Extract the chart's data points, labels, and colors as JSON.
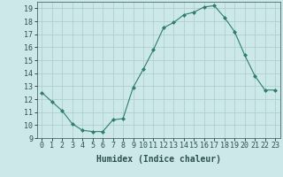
{
  "x": [
    0,
    1,
    2,
    3,
    4,
    5,
    6,
    7,
    8,
    9,
    10,
    11,
    12,
    13,
    14,
    15,
    16,
    17,
    18,
    19,
    20,
    21,
    22,
    23
  ],
  "y": [
    12.5,
    11.8,
    11.1,
    10.1,
    9.6,
    9.5,
    9.5,
    10.4,
    10.5,
    12.9,
    14.3,
    15.8,
    17.5,
    17.9,
    18.5,
    18.7,
    19.1,
    19.2,
    18.3,
    17.2,
    15.4,
    13.8,
    12.7,
    12.7
  ],
  "line_color": "#2e7d6e",
  "marker": "D",
  "marker_size": 2,
  "bg_color": "#cce8e8",
  "grid_color": "#aacccc",
  "xlabel": "Humidex (Indice chaleur)",
  "xlim": [
    -0.5,
    23.5
  ],
  "ylim": [
    9,
    19.5
  ],
  "yticks": [
    9,
    10,
    11,
    12,
    13,
    14,
    15,
    16,
    17,
    18,
    19
  ],
  "xticks": [
    0,
    1,
    2,
    3,
    4,
    5,
    6,
    7,
    8,
    9,
    10,
    11,
    12,
    13,
    14,
    15,
    16,
    17,
    18,
    19,
    20,
    21,
    22,
    23
  ],
  "tick_fontsize": 6,
  "xlabel_fontsize": 7,
  "label_color": "#2e5050"
}
